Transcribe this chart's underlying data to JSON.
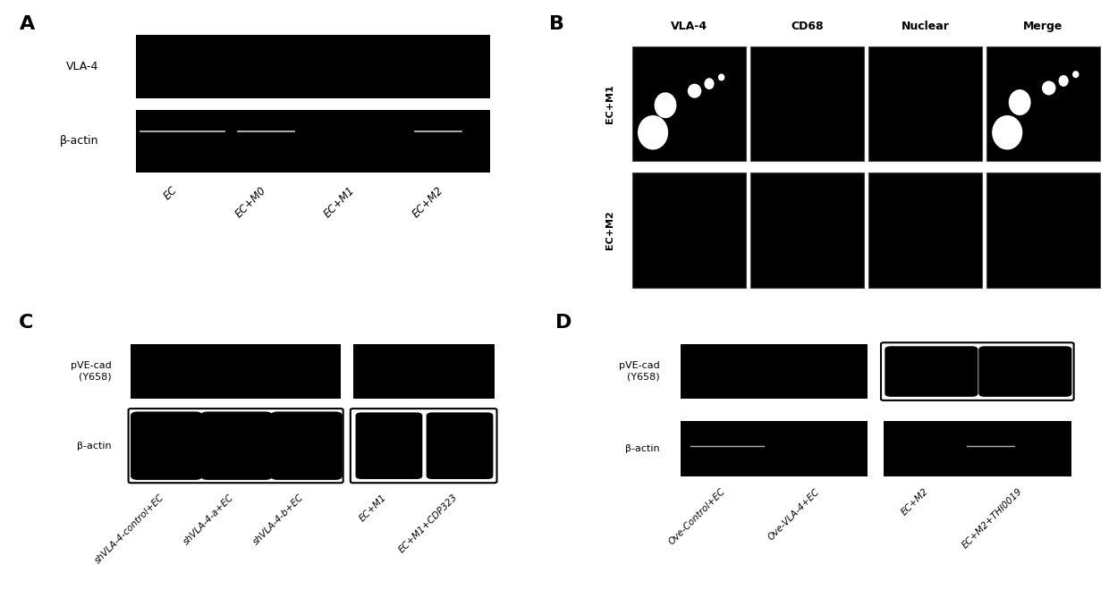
{
  "bg_color": "#ffffff",
  "panel_A": {
    "label": "A",
    "vla4_label": "VLA-4",
    "bactin_label": "β-actin",
    "x_labels": [
      "EC",
      "EC+M0",
      "EC+M1",
      "EC+M2"
    ]
  },
  "panel_B": {
    "label": "B",
    "col_labels": [
      "VLA-4",
      "CD68",
      "Nuclear",
      "Merge"
    ],
    "row_labels": [
      "EC+M1",
      "EC+M2"
    ]
  },
  "panel_C": {
    "label": "C",
    "pve_label": "pVE-cad\n(Y658)",
    "bactin_label": "β-actin",
    "x_labels": [
      "shVLA-4-control+EC",
      "shVLA-4-a+EC",
      "shVLA-4-b+EC",
      "EC+M1",
      "EC+M1+CDP323"
    ]
  },
  "panel_D": {
    "label": "D",
    "pve_label": "pVE-cad\n(Y658)",
    "bactin_label": "β-actin",
    "x_labels": [
      "Ove-Control+EC",
      "Ove-VLA-4+EC",
      "EC+M2",
      "EC+M2+THI0019"
    ]
  }
}
